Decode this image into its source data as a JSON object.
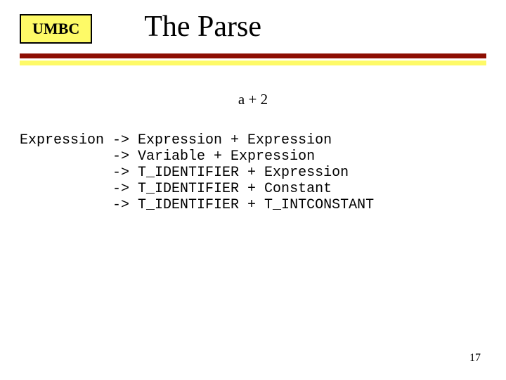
{
  "logo": {
    "text": "UMBC",
    "bg": "#fefa67",
    "font_size": 22
  },
  "title": {
    "text": "The Parse",
    "font_size": 42,
    "color": "#000000"
  },
  "rules": {
    "dark_color": "#8d0e02",
    "yellow_color": "#fefa67",
    "dark_width": 7,
    "yellow_width": 7,
    "gap": 3
  },
  "expression": {
    "text": "a + 2",
    "font_size": 21
  },
  "derivation": {
    "font_size": 20,
    "text": "Expression -> Expression + Expression\n           -> Variable + Expression\n           -> T_IDENTIFIER + Expression\n           -> T_IDENTIFIER + Constant\n           -> T_IDENTIFIER + T_INTCONSTANT"
  },
  "page_number": {
    "text": "17",
    "font_size": 16
  }
}
